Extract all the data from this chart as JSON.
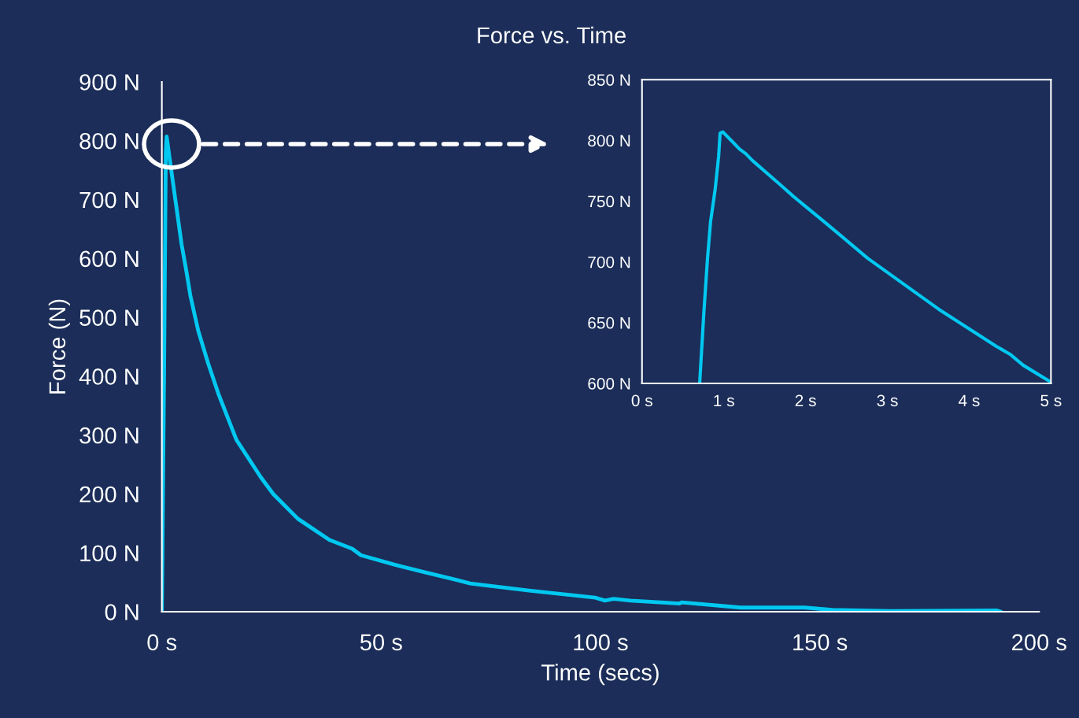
{
  "chart_data": [
    {
      "type": "line",
      "title": "Force vs. Time",
      "xlabel": "Time (secs)",
      "ylabel": "Force (N)",
      "xlim": [
        0,
        200
      ],
      "ylim": [
        0,
        900
      ],
      "xticks": [
        {
          "value": 0,
          "label": "0 s"
        },
        {
          "value": 50,
          "label": "50 s"
        },
        {
          "value": 100,
          "label": "100 s"
        },
        {
          "value": 150,
          "label": "150 s"
        },
        {
          "value": 200,
          "label": "200 s"
        }
      ],
      "yticks": [
        {
          "value": 0,
          "label": "0 N"
        },
        {
          "value": 100,
          "label": "100 N"
        },
        {
          "value": 200,
          "label": "200 N"
        },
        {
          "value": 300,
          "label": "300 N"
        },
        {
          "value": 400,
          "label": "400 N"
        },
        {
          "value": 500,
          "label": "500 N"
        },
        {
          "value": 600,
          "label": "600 N"
        },
        {
          "value": 700,
          "label": "700 N"
        },
        {
          "value": 800,
          "label": "800 N"
        },
        {
          "value": 900,
          "label": "900 N"
        }
      ],
      "x": [
        0,
        0.5,
        0.9,
        1.1,
        2.2,
        4.5,
        5.6,
        6.5,
        8.3,
        10.6,
        12.9,
        17.0,
        22.6,
        25.4,
        31.0,
        38.2,
        43.4,
        45.4,
        53.0,
        59.4,
        67.2,
        70.3,
        83.7,
        98.8,
        101,
        103,
        106.8,
        118,
        118.5,
        132,
        146.6,
        152.9,
        166,
        190.4,
        191.3
      ],
      "series": [
        {
          "color": "#00c8f0",
          "values": [
            0,
            400,
            780,
            807,
            747,
            624,
            578,
            537,
            477,
            421,
            370,
            292,
            228,
            200,
            158,
            122,
            107,
            96,
            80,
            68,
            54,
            48,
            36,
            24,
            19,
            22,
            19,
            14,
            16,
            7,
            7,
            3,
            1,
            2,
            0
          ]
        }
      ]
    },
    {
      "type": "line",
      "xlim": [
        0,
        5
      ],
      "ylim": [
        600,
        850
      ],
      "xticks": [
        {
          "value": 0,
          "label": "0 s"
        },
        {
          "value": 1,
          "label": "1 s"
        },
        {
          "value": 2,
          "label": "2 s"
        },
        {
          "value": 3,
          "label": "3 s"
        },
        {
          "value": 4,
          "label": "4 s"
        },
        {
          "value": 5,
          "label": "5 s"
        }
      ],
      "yticks": [
        {
          "value": 600,
          "label": "600 N"
        },
        {
          "value": 650,
          "label": "650 N"
        },
        {
          "value": 700,
          "label": "700 N"
        },
        {
          "value": 750,
          "label": "750 N"
        },
        {
          "value": 800,
          "label": "800 N"
        },
        {
          "value": 850,
          "label": "850 N"
        }
      ],
      "x": [
        0.705,
        0.755,
        0.8,
        0.838,
        0.895,
        0.937,
        0.955,
        0.987,
        1.12,
        1.19,
        1.27,
        1.35,
        1.7,
        1.85,
        2.23,
        2.46,
        2.76,
        3.63,
        4.33,
        4.5,
        4.66,
        4.99
      ],
      "series": [
        {
          "color": "#00c8f0",
          "values": [
            600,
            657,
            702,
            733,
            760,
            787,
            806,
            807,
            798,
            793,
            789,
            783.5,
            763,
            754,
            733,
            720,
            703,
            661,
            630.6,
            624,
            615,
            601.5
          ]
        }
      ]
    }
  ]
}
